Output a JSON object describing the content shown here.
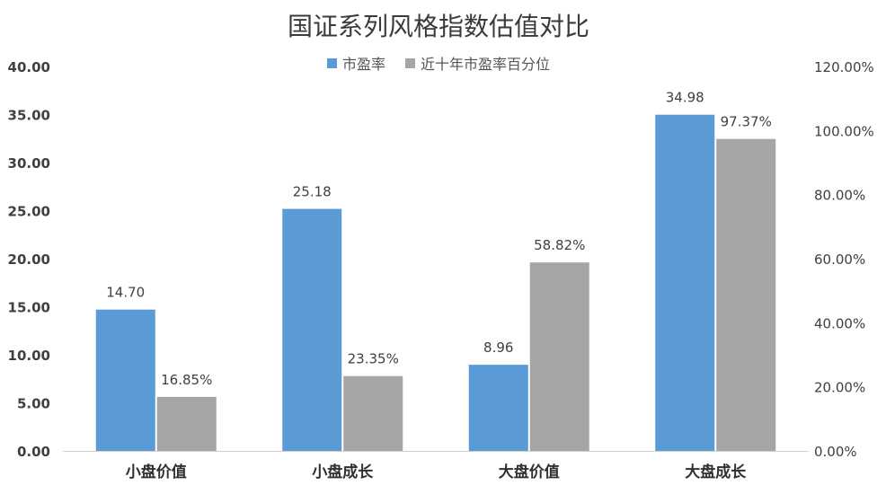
{
  "chart_data": {
    "type": "bar",
    "title": "国证系列风格指数估值对比",
    "categories": [
      "小盘价值",
      "小盘成长",
      "大盘价值",
      "大盘成长"
    ],
    "series": [
      {
        "name": "市盈率",
        "axis": "left",
        "color": "#5b9bd5",
        "values": [
          14.7,
          25.18,
          8.96,
          34.98
        ],
        "labels": [
          "14.70",
          "25.18",
          "8.96",
          "34.98"
        ]
      },
      {
        "name": "近十年市盈率百分位",
        "axis": "right",
        "color": "#a5a5a5",
        "values": [
          16.85,
          23.35,
          58.82,
          97.37
        ],
        "labels": [
          "16.85%",
          "23.35%",
          "58.82%",
          "97.37%"
        ]
      }
    ],
    "y_left": {
      "range": [
        0,
        40
      ],
      "ticks": [
        "0.00",
        "5.00",
        "10.00",
        "15.00",
        "20.00",
        "25.00",
        "30.00",
        "35.00",
        "40.00"
      ]
    },
    "y_right": {
      "range": [
        0,
        120
      ],
      "ticks": [
        "0.00%",
        "20.00%",
        "40.00%",
        "60.00%",
        "80.00%",
        "100.00%",
        "120.00%"
      ]
    },
    "legend_position": "top",
    "grid": false
  }
}
